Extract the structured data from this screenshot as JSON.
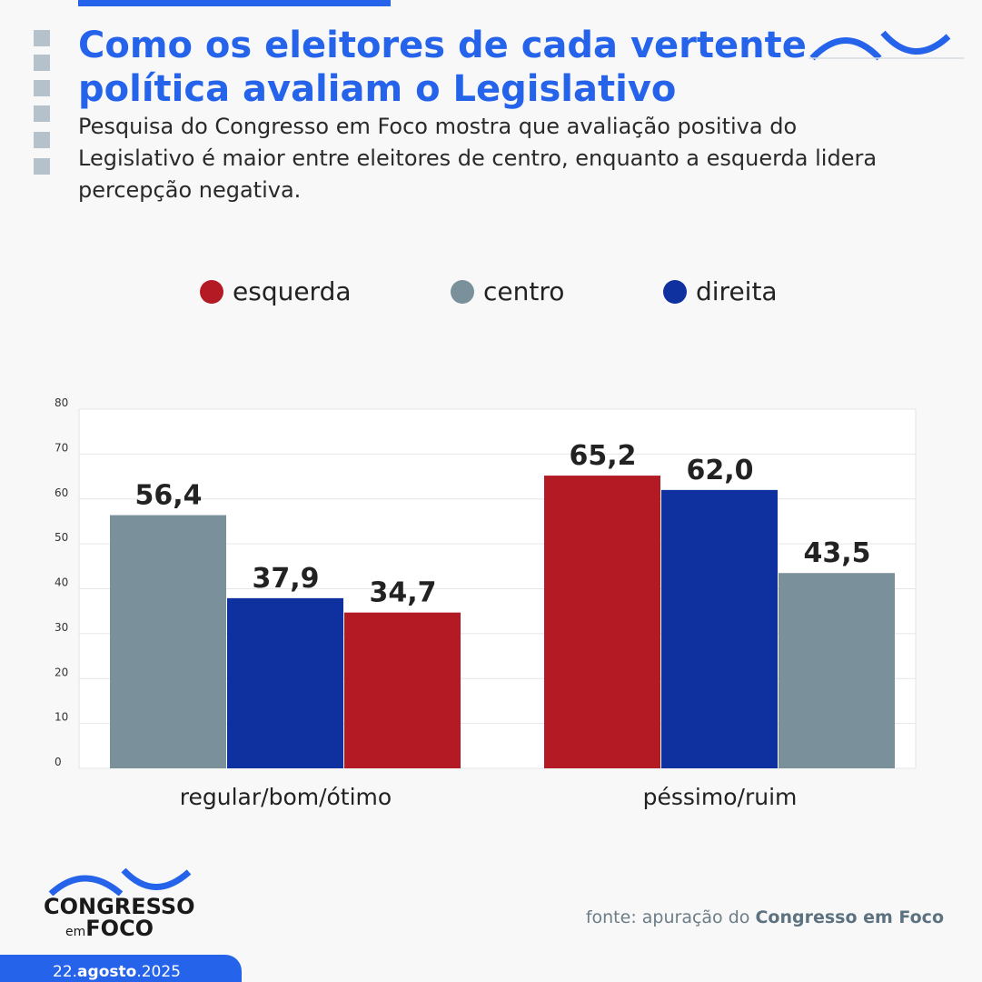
{
  "title": "Como os eleitores de cada vertente política avaliam o Legislativo",
  "subtitle": "Pesquisa do Congresso em Foco mostra que avaliação positiva do Legislativo é maior entre eleitores de centro, enquanto a esquerda lidera percepção negativa.",
  "colors": {
    "accent": "#2563eb",
    "esquerda": "#b31a24",
    "centro": "#7a909b",
    "direita": "#0f31a0"
  },
  "chart_data": {
    "type": "bar",
    "categories": [
      "regular/bom/ótimo",
      "péssimo/ruim"
    ],
    "groups": [
      {
        "category": "regular/bom/ótimo",
        "bars": [
          {
            "series": "centro",
            "value": 56.4,
            "label": "56,4"
          },
          {
            "series": "direita",
            "value": 37.9,
            "label": "37,9"
          },
          {
            "series": "esquerda",
            "value": 34.7,
            "label": "34,7"
          }
        ]
      },
      {
        "category": "péssimo/ruim",
        "bars": [
          {
            "series": "esquerda",
            "value": 65.2,
            "label": "65,2"
          },
          {
            "series": "direita",
            "value": 62.0,
            "label": "62,0"
          },
          {
            "series": "centro",
            "value": 43.5,
            "label": "43,5"
          }
        ]
      }
    ],
    "legend": [
      "esquerda",
      "centro",
      "direita"
    ],
    "legend_position": "top",
    "ylim": [
      0,
      80
    ],
    "yticks": [
      "0",
      "10",
      "20",
      "30",
      "40",
      "50",
      "60",
      "70",
      "80"
    ],
    "grid": true
  },
  "footer": {
    "brand_line1": "CONGRESSO",
    "brand_em": "em",
    "brand_line2": "FOCO",
    "date_day": "22.",
    "date_month": "agosto",
    "date_year": ".2025",
    "source_prefix": "fonte: apuração do ",
    "source_name": "Congresso em Foco"
  }
}
